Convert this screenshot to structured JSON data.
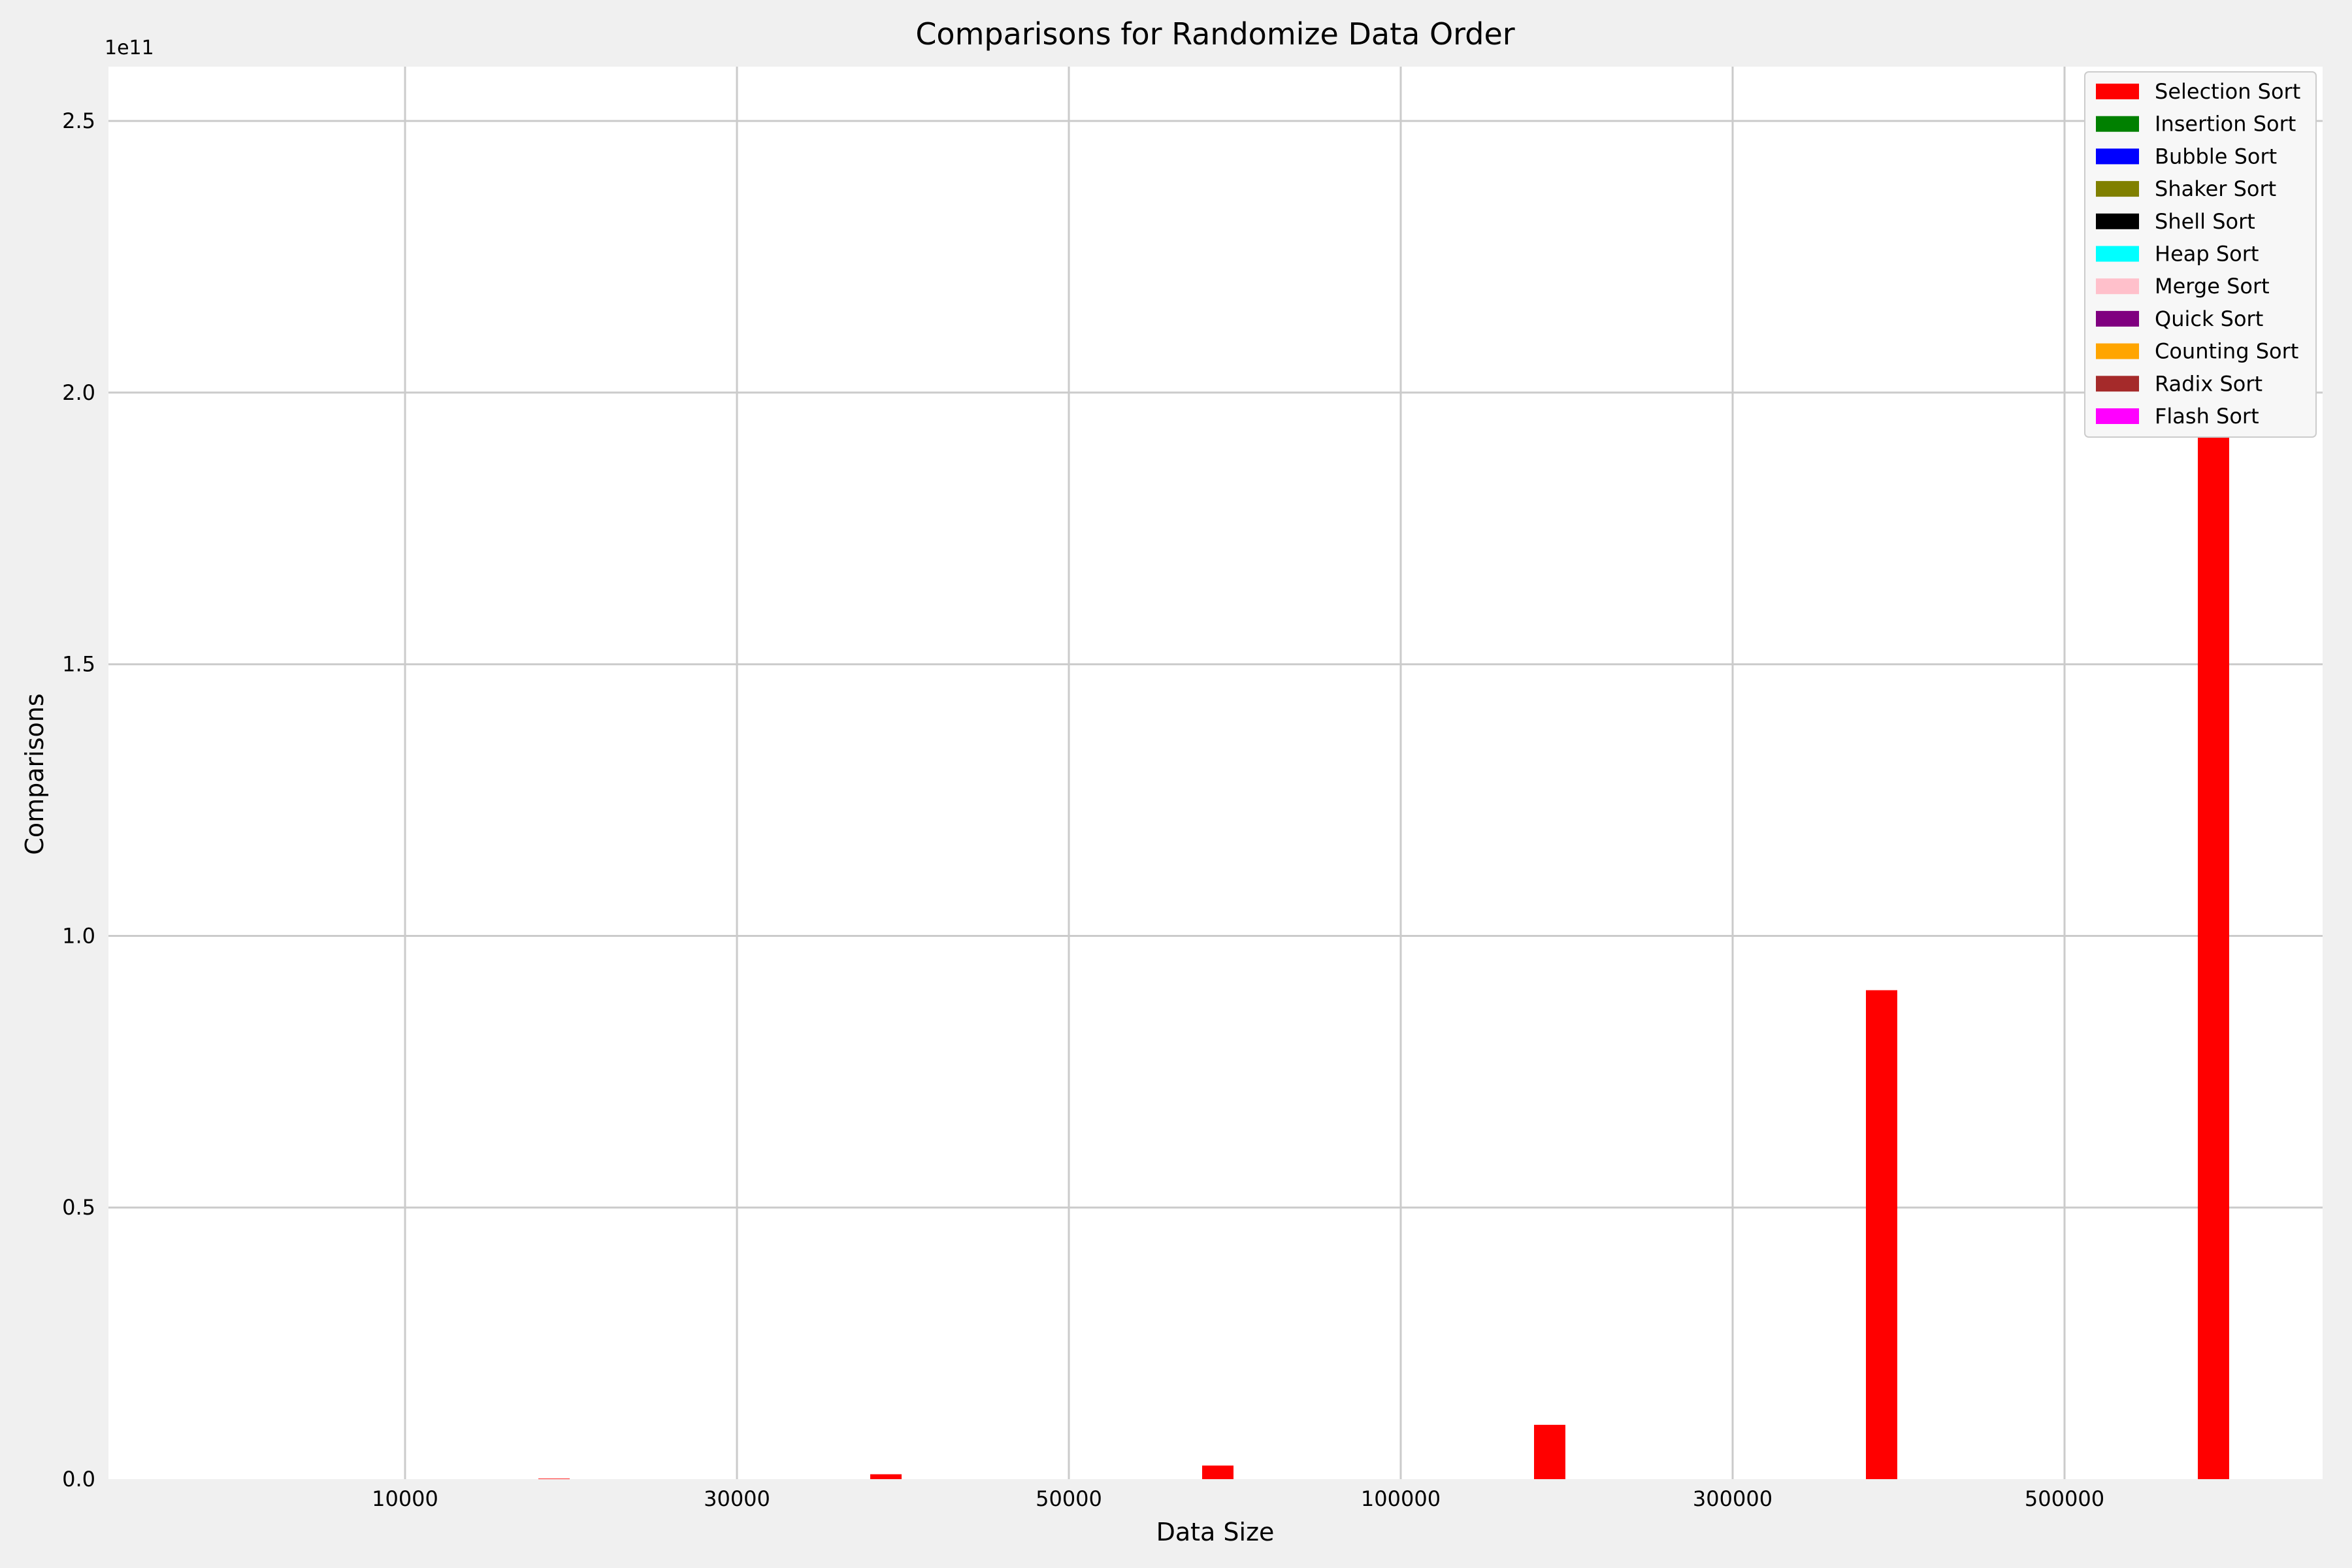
{
  "chart_data": {
    "type": "bar",
    "title": "Comparisons for Randomize Data Order",
    "xlabel": "Data Size",
    "ylabel": "Comparisons",
    "y_offset_text": "1e11",
    "y_scale_multiplier": 100000000000,
    "ylim": [
      0,
      260000000000
    ],
    "y_ticks": [
      0,
      50000000000,
      100000000000,
      150000000000,
      200000000000,
      250000000000
    ],
    "y_tick_labels": [
      "0.0",
      "0.5",
      "1.0",
      "1.5",
      "2.0",
      "2.5"
    ],
    "categories": [
      "10000",
      "30000",
      "50000",
      "100000",
      "300000",
      "500000"
    ],
    "grid": true,
    "legend_position": "top-right",
    "series": [
      {
        "name": "Selection Sort",
        "color": "#ff0000",
        "values": [
          100000000,
          900000000,
          2500000000,
          10000000000,
          90000000000,
          250000000000
        ]
      },
      {
        "name": "Insertion Sort",
        "color": "#008000",
        "values": [
          0,
          0,
          0,
          0,
          0,
          0
        ]
      },
      {
        "name": "Bubble Sort",
        "color": "#0000ff",
        "values": [
          0,
          0,
          0,
          0,
          0,
          0
        ]
      },
      {
        "name": "Shaker Sort",
        "color": "#808000",
        "values": [
          0,
          0,
          0,
          0,
          0,
          0
        ]
      },
      {
        "name": "Shell Sort",
        "color": "#000000",
        "values": [
          0,
          0,
          0,
          0,
          0,
          0
        ]
      },
      {
        "name": "Heap Sort",
        "color": "#00ffff",
        "values": [
          0,
          0,
          0,
          0,
          0,
          0
        ]
      },
      {
        "name": "Merge Sort",
        "color": "#ffc0cb",
        "values": [
          0,
          0,
          0,
          0,
          0,
          0
        ]
      },
      {
        "name": "Quick Sort",
        "color": "#800080",
        "values": [
          0,
          0,
          0,
          0,
          0,
          0
        ]
      },
      {
        "name": "Counting Sort",
        "color": "#ffa500",
        "values": [
          0,
          0,
          0,
          0,
          0,
          0
        ]
      },
      {
        "name": "Radix Sort",
        "color": "#a52a2a",
        "values": [
          0,
          0,
          0,
          0,
          0,
          0
        ]
      },
      {
        "name": "Flash Sort",
        "color": "#ff00ff",
        "values": [
          0,
          0,
          0,
          0,
          0,
          0
        ]
      }
    ]
  }
}
